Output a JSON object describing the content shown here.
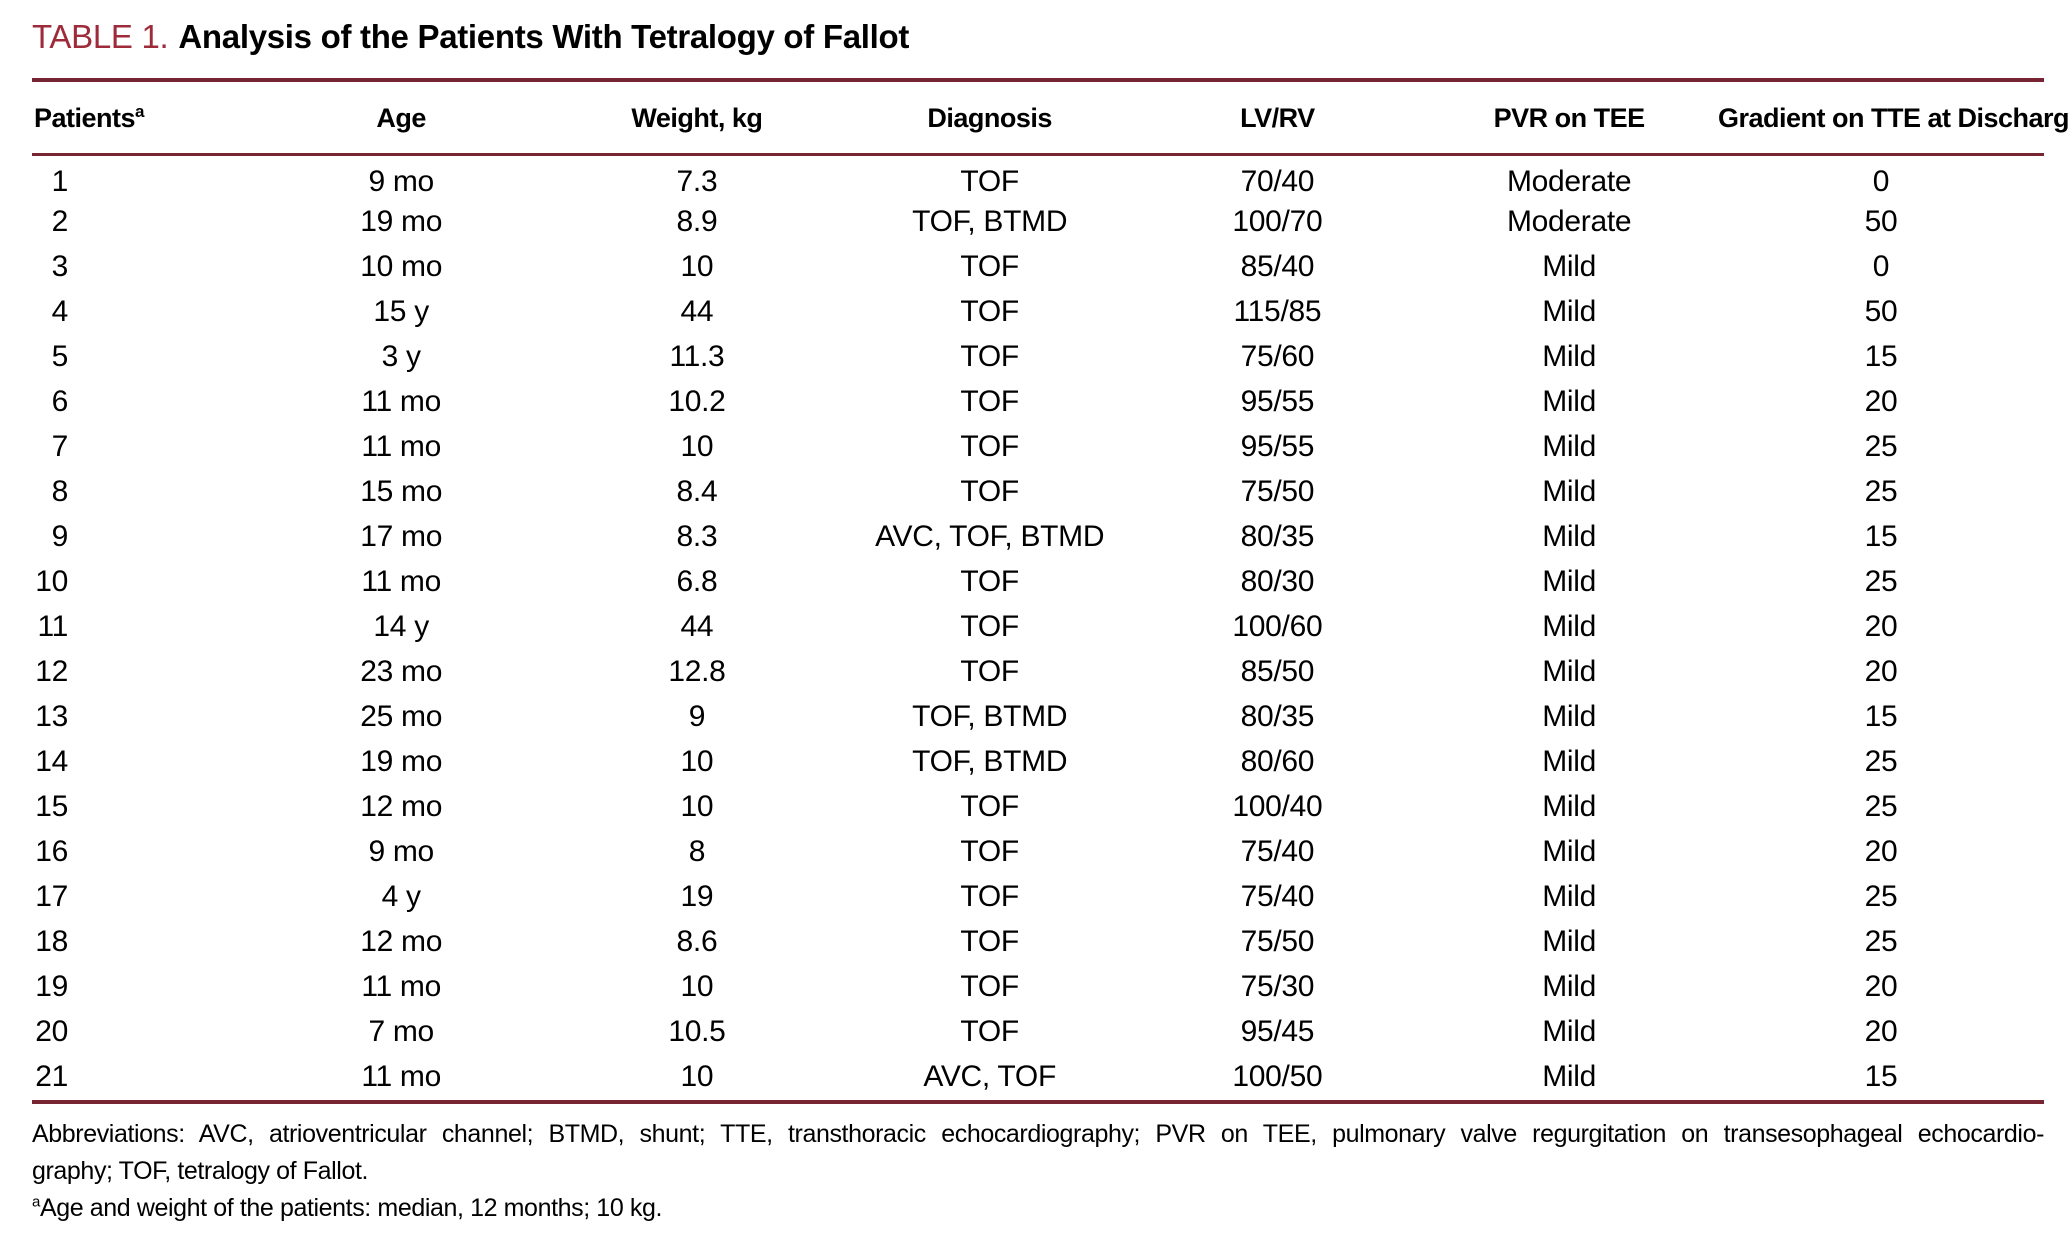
{
  "title": {
    "label": "TABLE 1.",
    "text": "Analysis of the Patients With Tetralogy of Fallot"
  },
  "table": {
    "columns": [
      "Patients",
      "Age",
      "Weight, kg",
      "Diagnosis",
      "LV/RV",
      "PVR on TEE",
      "Gradient on TTE at Discharge"
    ],
    "patients_footnote_mark": "a",
    "rows": [
      [
        "1",
        "9 mo",
        "7.3",
        "TOF",
        "70/40",
        "Moderate",
        "0"
      ],
      [
        "2",
        "19 mo",
        "8.9",
        "TOF, BTMD",
        "100/70",
        "Moderate",
        "50"
      ],
      [
        "3",
        "10 mo",
        "10",
        "TOF",
        "85/40",
        "Mild",
        "0"
      ],
      [
        "4",
        "15 y",
        "44",
        "TOF",
        "115/85",
        "Mild",
        "50"
      ],
      [
        "5",
        "3 y",
        "11.3",
        "TOF",
        "75/60",
        "Mild",
        "15"
      ],
      [
        "6",
        "11 mo",
        "10.2",
        "TOF",
        "95/55",
        "Mild",
        "20"
      ],
      [
        "7",
        "11 mo",
        "10",
        "TOF",
        "95/55",
        "Mild",
        "25"
      ],
      [
        "8",
        "15 mo",
        "8.4",
        "TOF",
        "75/50",
        "Mild",
        "25"
      ],
      [
        "9",
        "17 mo",
        "8.3",
        "AVC, TOF, BTMD",
        "80/35",
        "Mild",
        "15"
      ],
      [
        "10",
        "11 mo",
        "6.8",
        "TOF",
        "80/30",
        "Mild",
        "25"
      ],
      [
        "11",
        "14 y",
        "44",
        "TOF",
        "100/60",
        "Mild",
        "20"
      ],
      [
        "12",
        "23 mo",
        "12.8",
        "TOF",
        "85/50",
        "Mild",
        "20"
      ],
      [
        "13",
        "25 mo",
        "9",
        "TOF, BTMD",
        "80/35",
        "Mild",
        "15"
      ],
      [
        "14",
        "19 mo",
        "10",
        "TOF, BTMD",
        "80/60",
        "Mild",
        "25"
      ],
      [
        "15",
        "12 mo",
        "10",
        "TOF",
        "100/40",
        "Mild",
        "25"
      ],
      [
        "16",
        "9 mo",
        "8",
        "TOF",
        "75/40",
        "Mild",
        "20"
      ],
      [
        "17",
        "4 y",
        "19",
        "TOF",
        "75/40",
        "Mild",
        "25"
      ],
      [
        "18",
        "12 mo",
        "8.6",
        "TOF",
        "75/50",
        "Mild",
        "25"
      ],
      [
        "19",
        "11 mo",
        "10",
        "TOF",
        "75/30",
        "Mild",
        "20"
      ],
      [
        "20",
        "7 mo",
        "10.5",
        "TOF",
        "95/45",
        "Mild",
        "20"
      ],
      [
        "21",
        "11 mo",
        "10",
        "AVC, TOF",
        "100/50",
        "Mild",
        "15"
      ]
    ]
  },
  "footnotes": {
    "abbreviations_line1": "Abbreviations: AVC, atrioventricular channel; BTMD, shunt; TTE, transthoracic echocardiography; PVR on TEE, pulmonary valve regurgitation on transesophageal echocardio-",
    "abbreviations_line2": "graphy; TOF, tetralogy of Fallot.",
    "age_footnote_mark": "a",
    "age_footnote_text": "Age and weight of the patients: median, 12 months; 10 kg."
  },
  "colors": {
    "accent_rule": "#772532",
    "title_red": "#9d2b3a",
    "text": "#000000",
    "background": "#ffffff"
  }
}
